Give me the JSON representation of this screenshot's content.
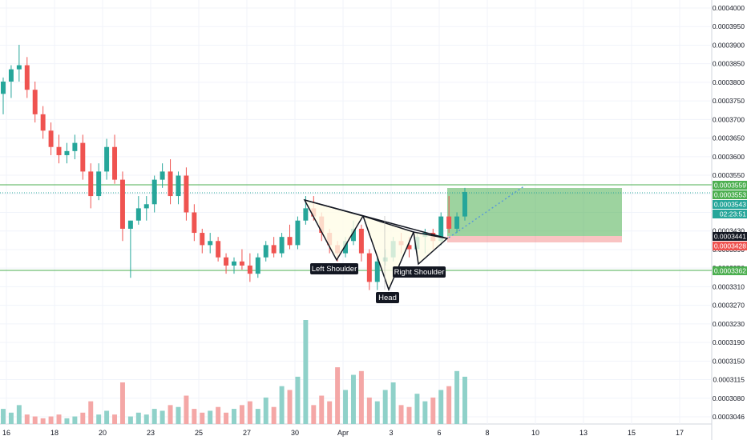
{
  "colors": {
    "up": "#26a69a",
    "down": "#ef5350",
    "vol_up": "#8fd1c9",
    "vol_down": "#f4a7a6",
    "grid": "#f0f3fa",
    "axis_line": "#d1d4dc",
    "green_zone": "#4caf50",
    "red_zone": "#ef5350",
    "pattern_fill": "#fffde7",
    "label_bg": "#131722",
    "dotted_line": "#5b9bd5",
    "price_line": "#26a69a"
  },
  "chart_data": {
    "type": "candlestick",
    "y_axis": {
      "range": [
        0.000302,
        0.000402
      ],
      "ticks": [
        "0.0004000",
        "0.0003950",
        "0.0003900",
        "0.0003850",
        "0.0003800",
        "0.0003750",
        "0.0003700",
        "0.0003650",
        "0.0003600",
        "0.0003550",
        "0.0003510",
        "0.0003470",
        "0.0003430",
        "0.0003390",
        "0.0003350",
        "0.0003310",
        "0.0003270",
        "0.0003230",
        "0.0003190",
        "0.0003150",
        "0.0003115",
        "0.0003080",
        "0.0003046"
      ]
    },
    "x_axis": {
      "ticks": [
        "16",
        "18",
        "20",
        "23",
        "25",
        "27",
        "30",
        "Apr",
        "3",
        "6",
        "8",
        "10",
        "13",
        "15",
        "17"
      ]
    },
    "candles": [
      [
        0.000381,
        0.000385,
        0.000376,
        0.000384
      ],
      [
        0.000384,
        0.000388,
        0.00038,
        0.000387
      ],
      [
        0.000387,
        0.000393,
        0.000384,
        0.000388
      ],
      [
        0.000388,
        0.00039,
        0.00038,
        0.000382
      ],
      [
        0.000382,
        0.000384,
        0.000374,
        0.000376
      ],
      [
        0.000376,
        0.000378,
        0.00037,
        0.000372
      ],
      [
        0.000372,
        0.000374,
        0.000366,
        0.000368
      ],
      [
        0.000368,
        0.000371,
        0.000364,
        0.000366
      ],
      [
        0.000366,
        0.000369,
        0.000364,
        0.000367
      ],
      [
        0.000367,
        0.000371,
        0.000365,
        0.000369
      ],
      [
        0.000369,
        0.000371,
        0.00036,
        0.000362
      ],
      [
        0.000362,
        0.000364,
        0.000353,
        0.000356
      ],
      [
        0.000356,
        0.000364,
        0.000355,
        0.000362
      ],
      [
        0.000362,
        0.00037,
        0.00036,
        0.000368
      ],
      [
        0.000368,
        0.000371,
        0.000359,
        0.00036
      ],
      [
        0.00036,
        0.000362,
        0.000345,
        0.000348
      ],
      [
        0.000348,
        0.00035,
        0.000336,
        0.00035
      ],
      [
        0.00035,
        0.000356,
        0.000349,
        0.000353
      ],
      [
        0.000353,
        0.000356,
        0.00035,
        0.000354
      ],
      [
        0.000354,
        0.000361,
        0.000352,
        0.00036
      ],
      [
        0.00036,
        0.000364,
        0.000358,
        0.000362
      ],
      [
        0.000362,
        0.000365,
        0.000354,
        0.000356
      ],
      [
        0.000356,
        0.000362,
        0.000354,
        0.000361
      ],
      [
        0.000361,
        0.000363,
        0.00035,
        0.000352
      ],
      [
        0.000352,
        0.000354,
        0.000345,
        0.000347
      ],
      [
        0.000347,
        0.000348,
        0.000342,
        0.000344
      ],
      [
        0.000344,
        0.000347,
        0.000342,
        0.000345
      ],
      [
        0.000345,
        0.000346,
        0.00034,
        0.000341
      ],
      [
        0.000341,
        0.000342,
        0.000337,
        0.000339
      ],
      [
        0.000339,
        0.000341,
        0.000337,
        0.00034
      ],
      [
        0.00034,
        0.000343,
        0.000338,
        0.000339
      ],
      [
        0.000339,
        0.000342,
        0.000335,
        0.000337
      ],
      [
        0.000337,
        0.000342,
        0.000336,
        0.000341
      ],
      [
        0.000341,
        0.000345,
        0.00034,
        0.000344
      ],
      [
        0.000344,
        0.000346,
        0.000341,
        0.000342
      ],
      [
        0.000342,
        0.000347,
        0.000341,
        0.000346
      ],
      [
        0.000346,
        0.000349,
        0.000343,
        0.000344
      ],
      [
        0.000344,
        0.000351,
        0.000343,
        0.00035
      ],
      [
        0.00035,
        0.000356,
        0.000349,
        0.000353
      ],
      [
        0.000353,
        0.000356,
        0.00035,
        0.000351
      ],
      [
        0.000351,
        0.000352,
        0.000345,
        0.000347
      ],
      [
        0.000347,
        0.000348,
        0.000342,
        0.000344
      ],
      [
        0.000344,
        0.000345,
        0.00034,
        0.000342
      ],
      [
        0.000342,
        0.000346,
        0.000341,
        0.000345
      ],
      [
        0.000345,
        0.00035,
        0.000344,
        0.000348
      ],
      [
        0.000348,
        0.000349,
        0.00034,
        0.000342
      ],
      [
        0.000342,
        0.000343,
        0.000333,
        0.000335
      ],
      [
        0.000335,
        0.000341,
        0.000333,
        0.00034
      ],
      [
        0.00034,
        0.000343,
        0.000339,
        0.000341
      ],
      [
        0.000341,
        0.000346,
        0.00034,
        0.000345
      ],
      [
        0.000345,
        0.000347,
        0.000342,
        0.000344
      ],
      [
        0.000344,
        0.000346,
        0.000341,
        0.000343
      ],
      [
        0.000343,
        0.000347,
        0.000342,
        0.000346
      ],
      [
        0.000346,
        0.000348,
        0.000342,
        0.000347
      ],
      [
        0.000347,
        0.000348,
        0.000343,
        0.000345
      ],
      [
        0.000345,
        0.000352,
        0.000344,
        0.000351
      ],
      [
        0.000351,
        0.000356,
        0.000347,
        0.000348
      ],
      [
        0.000348,
        0.000352,
        0.000347,
        0.000351
      ],
      [
        0.000351,
        0.000358,
        0.00035,
        0.000357
      ]
    ],
    "volumes": [
      8,
      6,
      10,
      5,
      4,
      3,
      4,
      5,
      3,
      4,
      6,
      12,
      5,
      7,
      5,
      22,
      4,
      6,
      5,
      8,
      7,
      10,
      9,
      15,
      8,
      6,
      7,
      9,
      6,
      8,
      10,
      12,
      8,
      14,
      9,
      20,
      18,
      25,
      55,
      10,
      15,
      12,
      30,
      18,
      26,
      28,
      14,
      12,
      18,
      22,
      10,
      9,
      16,
      12,
      14,
      18,
      20,
      28,
      25
    ]
  },
  "patterns": {
    "left_shoulder": "Left Shoulder",
    "head": "Head",
    "right_shoulder": "Right Shoulder"
  },
  "price_tags": {
    "p1": "0.0003559",
    "p2": "0.0003553",
    "p3": "0.0003543",
    "countdown": "02:23:51",
    "p4": "0.0003441",
    "p5": "0.0003428",
    "p6": "0.0003362"
  }
}
